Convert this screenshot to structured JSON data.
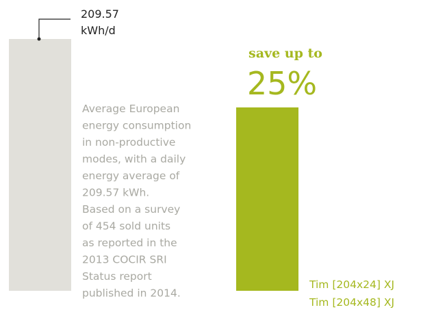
{
  "callout": {
    "value": "209.57",
    "unit": "kWh/d"
  },
  "highlight": {
    "lead": "save up to",
    "value": "25%"
  },
  "description": [
    "Average European",
    "energy consumption",
    "in non-productive",
    "modes, with a daily",
    "energy average of",
    "209.57 kWh.",
    "Based on a survey",
    "of 454 sold units",
    "as reported in the",
    "2013 COCIR SRI",
    "Status report",
    "published in 2014."
  ],
  "legend": [
    "Tim [204x24] XJ",
    "Tim [204x48] XJ"
  ]
}
